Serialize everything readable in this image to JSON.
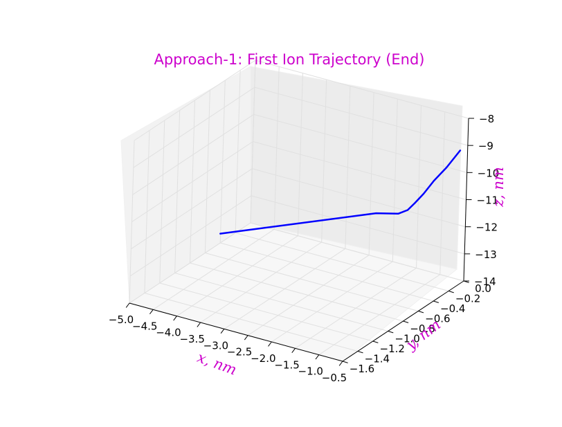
{
  "chart_data": {
    "type": "line",
    "title": "Approach-1: First Ion Trajectory (End)",
    "xlabel": "x, nm",
    "ylabel": "y, nm",
    "zlabel": "z, nm",
    "xlim": [
      -5.0,
      -0.5
    ],
    "ylim": [
      -1.6,
      0.0
    ],
    "zlim": [
      -14,
      -8
    ],
    "x_ticks": [
      "−5.0",
      "−4.5",
      "−4.0",
      "−3.5",
      "−3.0",
      "−2.5",
      "−2.0",
      "−1.5",
      "−1.0",
      "−0.5"
    ],
    "y_ticks": [
      "−1.6",
      "−1.4",
      "−1.2",
      "−1.0",
      "−0.8",
      "−0.6",
      "−0.4",
      "−0.2",
      "0.0"
    ],
    "z_ticks": [
      "−14",
      "−13",
      "−12",
      "−11",
      "−10",
      "−9",
      "−8"
    ],
    "grid": true,
    "colors": {
      "title": "#cc00cc",
      "labels": "#cc00cc",
      "line": "#0000ff",
      "pane_back": "#ececec",
      "pane_side": "#f2f2f2",
      "pane_floor": "#f7f7f7",
      "grid": "#e0e0e0"
    },
    "series": [
      {
        "x": [
          -4.85,
          -1.6,
          -1.2,
          -1.05,
          -0.95,
          -0.85,
          -0.75,
          -0.62,
          -0.5
        ],
        "y": [
          -0.5,
          -0.5,
          -0.46,
          -0.43,
          -0.4,
          -0.35,
          -0.28,
          -0.2,
          -0.1
        ],
        "z": [
          -13.4,
          -11.1,
          -11.0,
          -10.85,
          -10.6,
          -10.3,
          -9.9,
          -9.5,
          -9.0
        ]
      }
    ]
  }
}
